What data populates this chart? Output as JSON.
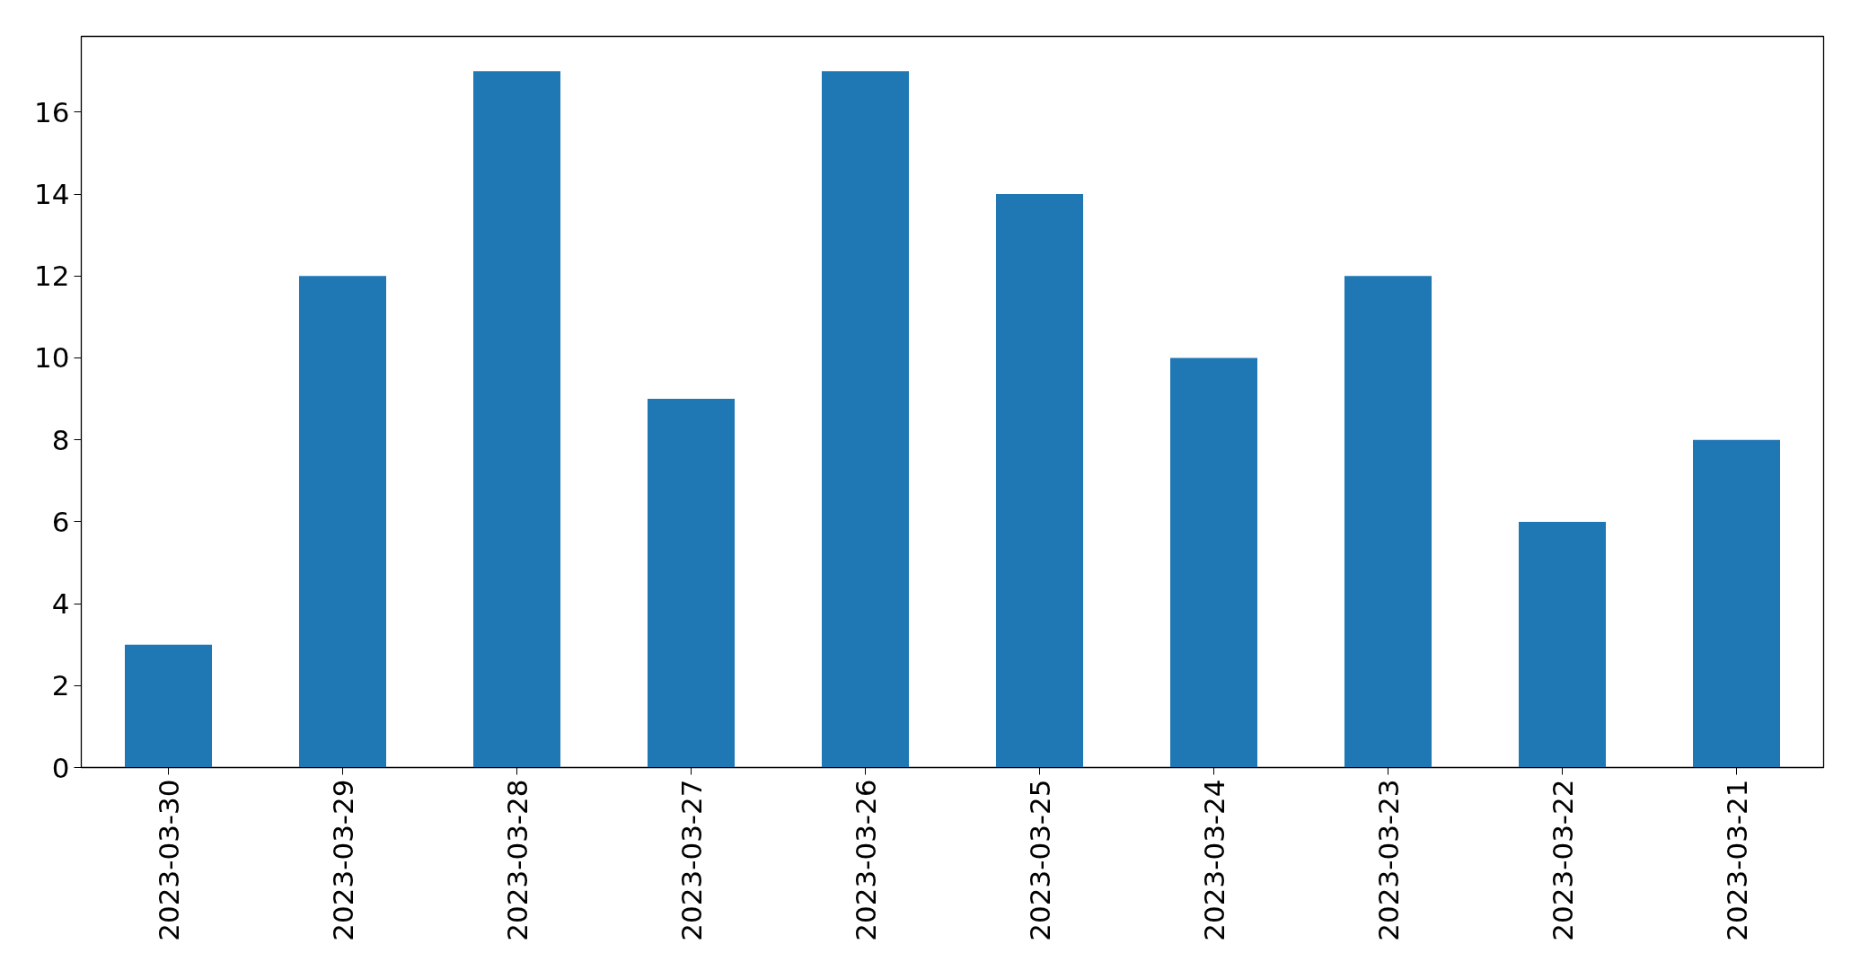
{
  "chart_data": {
    "type": "bar",
    "categories": [
      "2023-03-30",
      "2023-03-29",
      "2023-03-28",
      "2023-03-27",
      "2023-03-26",
      "2023-03-25",
      "2023-03-24",
      "2023-03-23",
      "2023-03-22",
      "2023-03-21"
    ],
    "values": [
      3,
      12,
      17,
      9,
      17,
      14,
      10,
      12,
      6,
      8
    ],
    "color": "#1f77b4",
    "ylim": [
      0,
      17.85
    ],
    "yticks": [
      0,
      2,
      4,
      6,
      8,
      10,
      12,
      14,
      16
    ],
    "grid": false
  }
}
